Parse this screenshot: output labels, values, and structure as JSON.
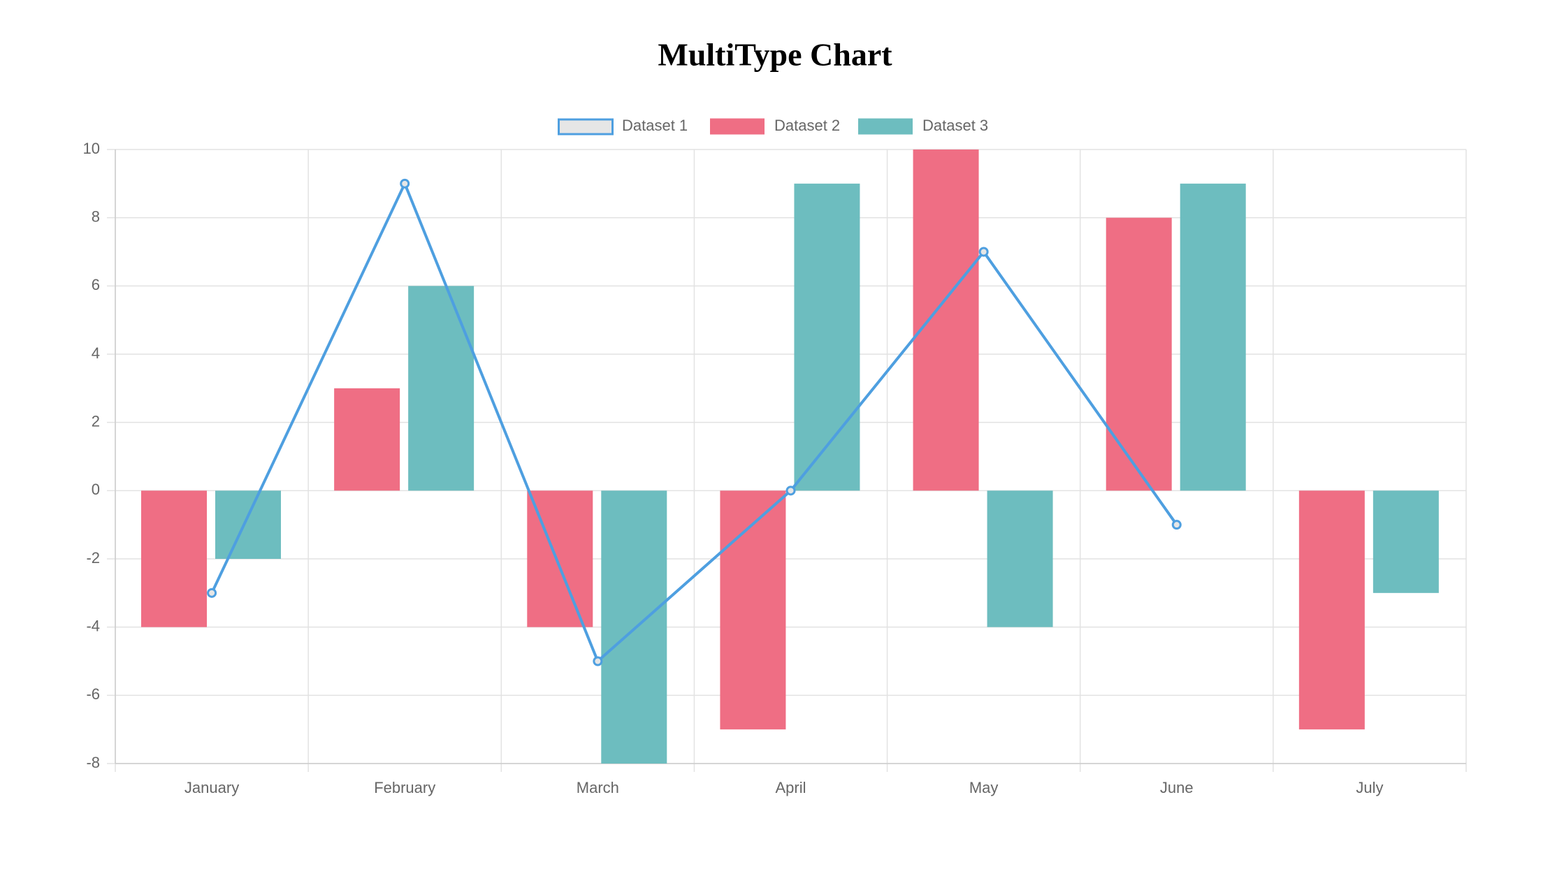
{
  "chart_data": {
    "type": "bar-line",
    "title": "MultiType Chart",
    "categories": [
      "January",
      "February",
      "March",
      "April",
      "May",
      "June",
      "July"
    ],
    "series": [
      {
        "name": "Dataset 1",
        "type": "line",
        "color": "#4e9fe0",
        "values": [
          -3,
          9,
          -5,
          0,
          7,
          -1,
          null
        ]
      },
      {
        "name": "Dataset 2",
        "type": "bar",
        "color": "#ef6e84",
        "values": [
          -4,
          3,
          -4,
          -7,
          10,
          8,
          -7
        ]
      },
      {
        "name": "Dataset 3",
        "type": "bar",
        "color": "#6dbdbf",
        "values": [
          -2,
          6,
          -8,
          9,
          -4,
          9,
          -3
        ]
      }
    ],
    "ylim": [
      -8,
      10
    ],
    "yticks": [
      -8,
      -6,
      -4,
      -2,
      0,
      2,
      4,
      6,
      8,
      10
    ],
    "grid": true,
    "legend": "top"
  }
}
